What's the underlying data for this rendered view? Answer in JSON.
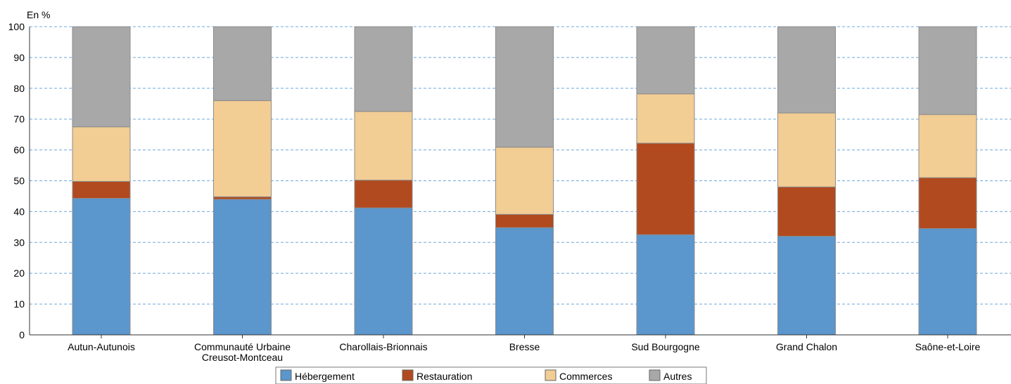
{
  "chart_data": {
    "type": "bar",
    "stacked": true,
    "unit_label": "En %",
    "ylim": [
      0,
      100
    ],
    "yticks": [
      0,
      10,
      20,
      30,
      40,
      50,
      60,
      70,
      80,
      90,
      100
    ],
    "grid": true,
    "legend_position": "bottom",
    "categories": [
      "Autun-Autunois",
      "Communauté Urbaine\nCreusot-Montceau",
      "Charollais-Brionnais",
      "Bresse",
      "Sud Bourgogne",
      "Grand Chalon",
      "Saône-et-Loire"
    ],
    "series": [
      {
        "name": "Hébergement",
        "color": "#5b96cd",
        "values": [
          44.3,
          44,
          41.2,
          34.8,
          32.5,
          32,
          34.5
        ]
      },
      {
        "name": "Restauration",
        "color": "#b24a1f",
        "values": [
          5.5,
          0.8,
          9,
          4.3,
          29.7,
          16,
          16.5
        ]
      },
      {
        "name": "Commerces",
        "color": "#f2cd94",
        "values": [
          17.7,
          31.2,
          22.3,
          21.8,
          16,
          24,
          20.5
        ]
      },
      {
        "name": "Autres",
        "color": "#a8a8a8",
        "values": [
          32.5,
          24,
          27.5,
          39.1,
          21.8,
          28,
          28.5
        ]
      }
    ]
  }
}
